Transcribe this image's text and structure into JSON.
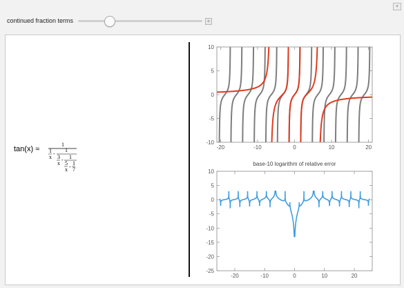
{
  "control": {
    "label": "continued fraction terms",
    "slider_fraction": 0.25,
    "plus_glyph": "+",
    "menu_glyph": "+"
  },
  "formula": {
    "lhs": "tan(x) ≈",
    "n1": "1",
    "d1a": "1",
    "d1b": "x",
    "n2": "1",
    "d2a": "3",
    "d2b": "x",
    "n3": "1",
    "d3a": "5",
    "d3b": "x",
    "n4": "1",
    "d4": "7"
  },
  "colors": {
    "approx": "#e03a1e",
    "tan_curve": "#7d7d7d",
    "error": "#3e9be0",
    "frame": "#888888"
  },
  "chart_data": [
    {
      "type": "line",
      "title": "",
      "xlim": [
        -21,
        21
      ],
      "ylim": [
        -10,
        10
      ],
      "xticks": [
        -20,
        -10,
        0,
        10,
        20
      ],
      "yticks": [
        -10,
        -5,
        0,
        5,
        10
      ],
      "series": [
        {
          "role": "tan(x)",
          "function": "tan(x)",
          "x_range": [
            -20.5,
            20.5
          ]
        },
        {
          "role": "approximation",
          "function": "x(105-10x^2)/(105-45x^2+x^4)",
          "x_range": [
            -21,
            21
          ]
        }
      ]
    },
    {
      "type": "line",
      "title": "base-10 logarithm of relative error",
      "xlim": [
        -26,
        26
      ],
      "ylim": [
        -25,
        10
      ],
      "xticks": [
        -20,
        -10,
        0,
        10,
        20
      ],
      "yticks": [
        -25,
        -20,
        -15,
        -10,
        -5,
        0,
        5,
        10
      ],
      "series": [
        {
          "role": "log10 relative error",
          "x_range": [
            -25,
            25
          ]
        }
      ]
    }
  ]
}
